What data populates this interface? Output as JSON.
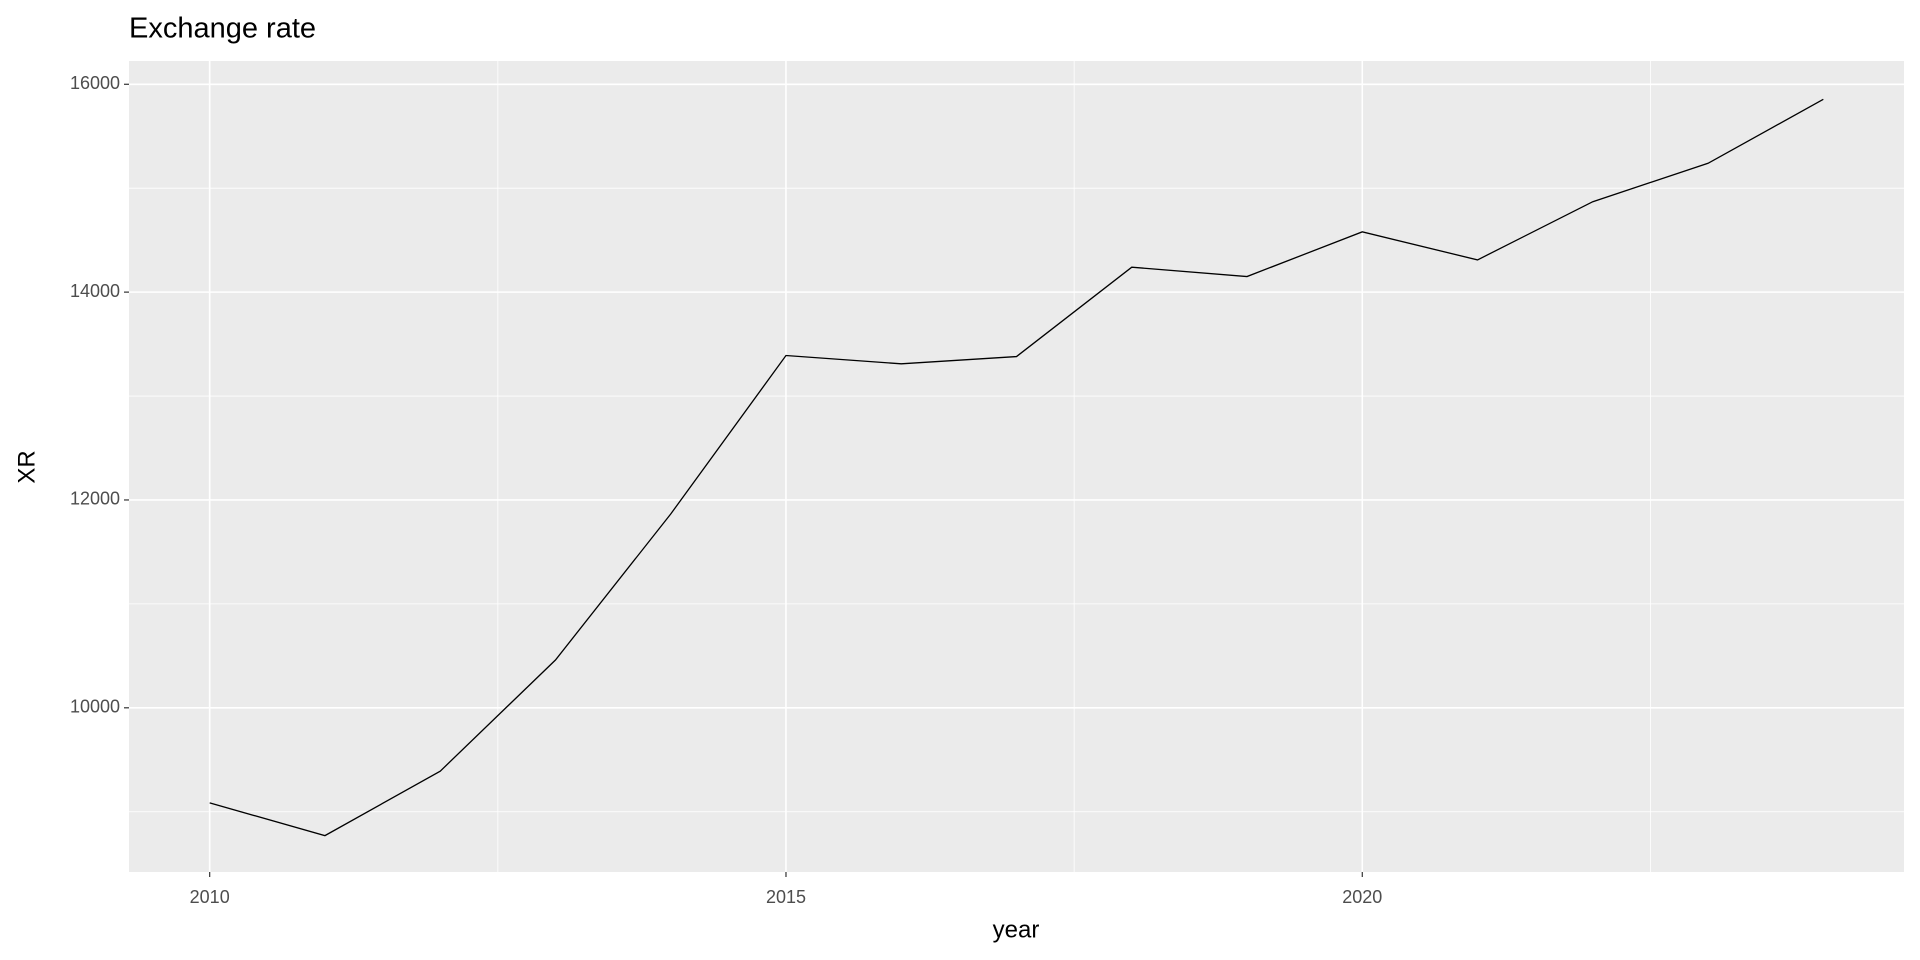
{
  "chart_data": {
    "type": "line",
    "title": "Exchange rate",
    "x_label": "year",
    "y_label": "XR",
    "x": [
      2010,
      2011,
      2012,
      2013,
      2014,
      2015,
      2016,
      2017,
      2018,
      2019,
      2020,
      2021,
      2022,
      2023,
      2024
    ],
    "series": [
      {
        "name": "XR",
        "color": "#000000",
        "values": [
          9085,
          8770,
          9390,
          10460,
          11865,
          13390,
          13310,
          13380,
          14240,
          14150,
          14580,
          14310,
          14870,
          15240,
          15855
        ]
      }
    ],
    "xlim": [
      2009.3,
      2024.7
    ],
    "xticks": [
      2010,
      2015,
      2020
    ],
    "x_minor_ticks": [
      2012.5,
      2017.5,
      2022.5
    ],
    "ylim": [
      8420,
      16224
    ],
    "yticks": [
      10000,
      12000,
      14000,
      16000
    ],
    "y_minor_ticks": [
      9000,
      11000,
      13000,
      15000
    ],
    "grid": true
  }
}
